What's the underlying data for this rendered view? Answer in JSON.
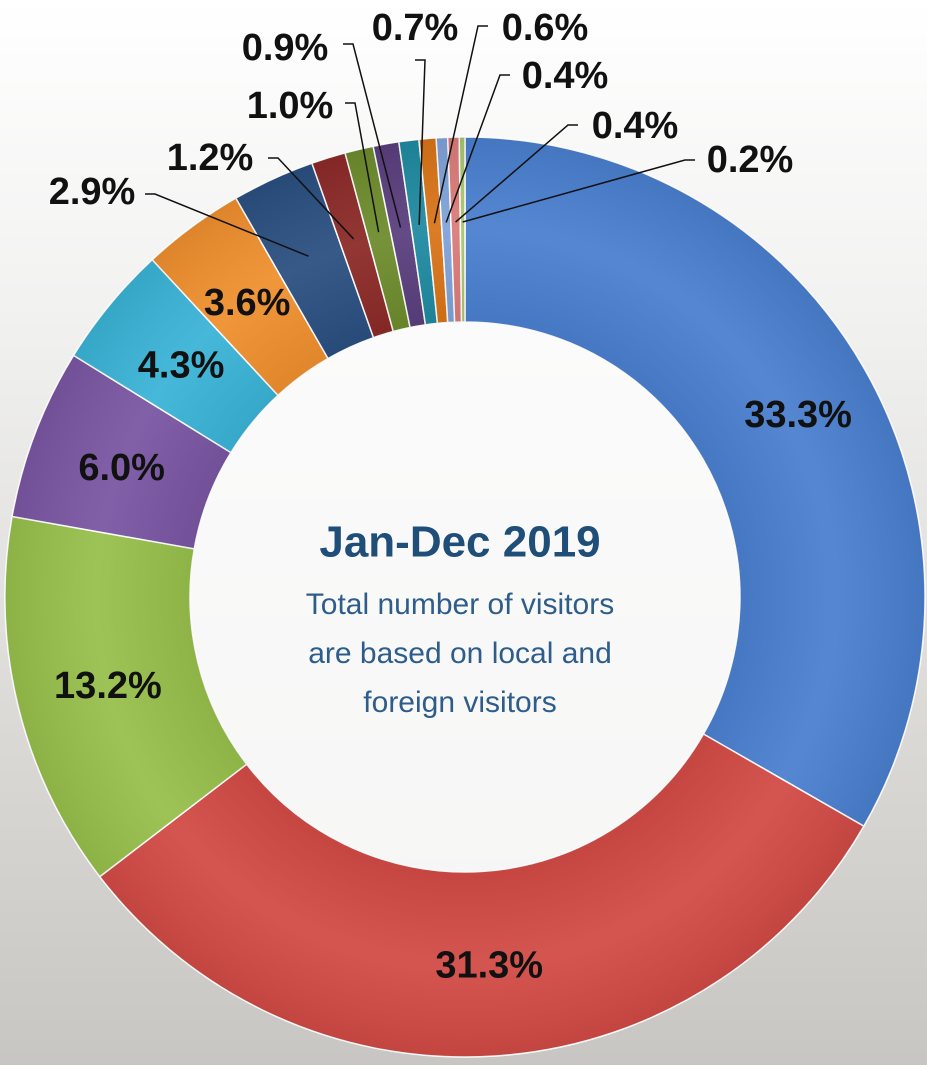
{
  "chart_data": {
    "type": "donut",
    "title": "Jan-Dec 2019",
    "subtitle": [
      "Total number of visitors",
      "are based on local and",
      "foreign visitors"
    ],
    "categories": [
      null,
      null,
      null,
      null,
      null,
      null,
      null,
      null,
      null,
      null,
      null,
      null,
      null,
      null,
      null
    ],
    "values": [
      33.3,
      31.3,
      13.2,
      6.0,
      4.3,
      3.6,
      2.9,
      1.2,
      1.0,
      0.9,
      0.7,
      0.6,
      0.4,
      0.4,
      0.2
    ],
    "value_labels": [
      "33.3%",
      "31.3%",
      "13.2%",
      "6.0%",
      "4.3%",
      "3.6%",
      "2.9%",
      "1.2%",
      "1.0%",
      "0.9%",
      "0.7%",
      "0.6%",
      "0.4%",
      "0.4%",
      "0.2%"
    ],
    "colors": [
      "#4a7fcf",
      "#d24a45",
      "#97bf4b",
      "#7a56a3",
      "#3ab3d6",
      "#ef8f2e",
      "#2a4f80",
      "#8c2a28",
      "#6e8c2d",
      "#5a3f7e",
      "#1f8aa1",
      "#d97418",
      "#7fa2d8",
      "#db7b78",
      "#a8c671"
    ]
  }
}
